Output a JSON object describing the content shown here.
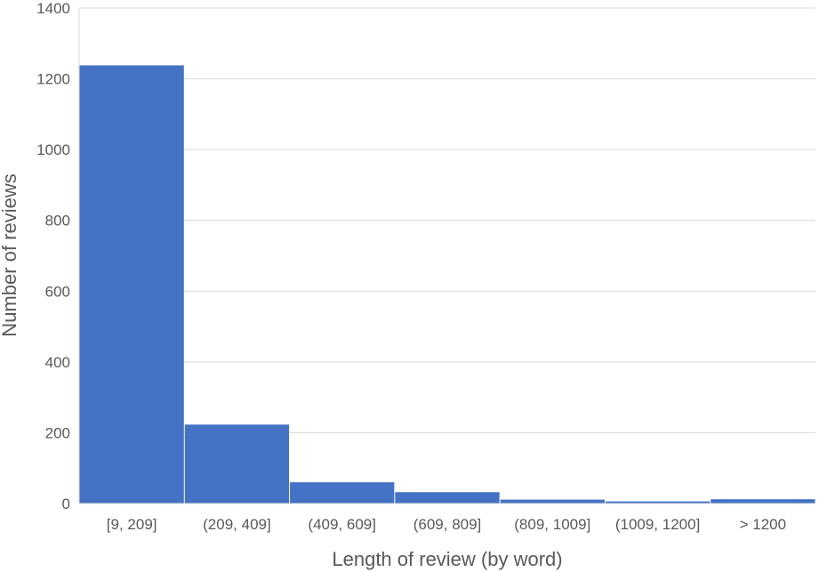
{
  "chart_data": {
    "type": "bar",
    "title": "",
    "xlabel": "Length of review (by word)",
    "ylabel": "Number of reviews",
    "categories": [
      "[9, 209]",
      "(209, 409]",
      "(409, 609]",
      "(609, 809]",
      "(809, 1009]",
      "(1009, 1200]",
      "> 1200"
    ],
    "values": [
      1238,
      223,
      60,
      32,
      11,
      6,
      12
    ],
    "ylim": [
      0,
      1400
    ],
    "yticks": [
      "0",
      "200",
      "400",
      "600",
      "800",
      "1000",
      "1200",
      "1400"
    ],
    "grid": true,
    "legend": "none",
    "bar_color": "#4472C4",
    "gridline_color": "#D9D9D9"
  }
}
